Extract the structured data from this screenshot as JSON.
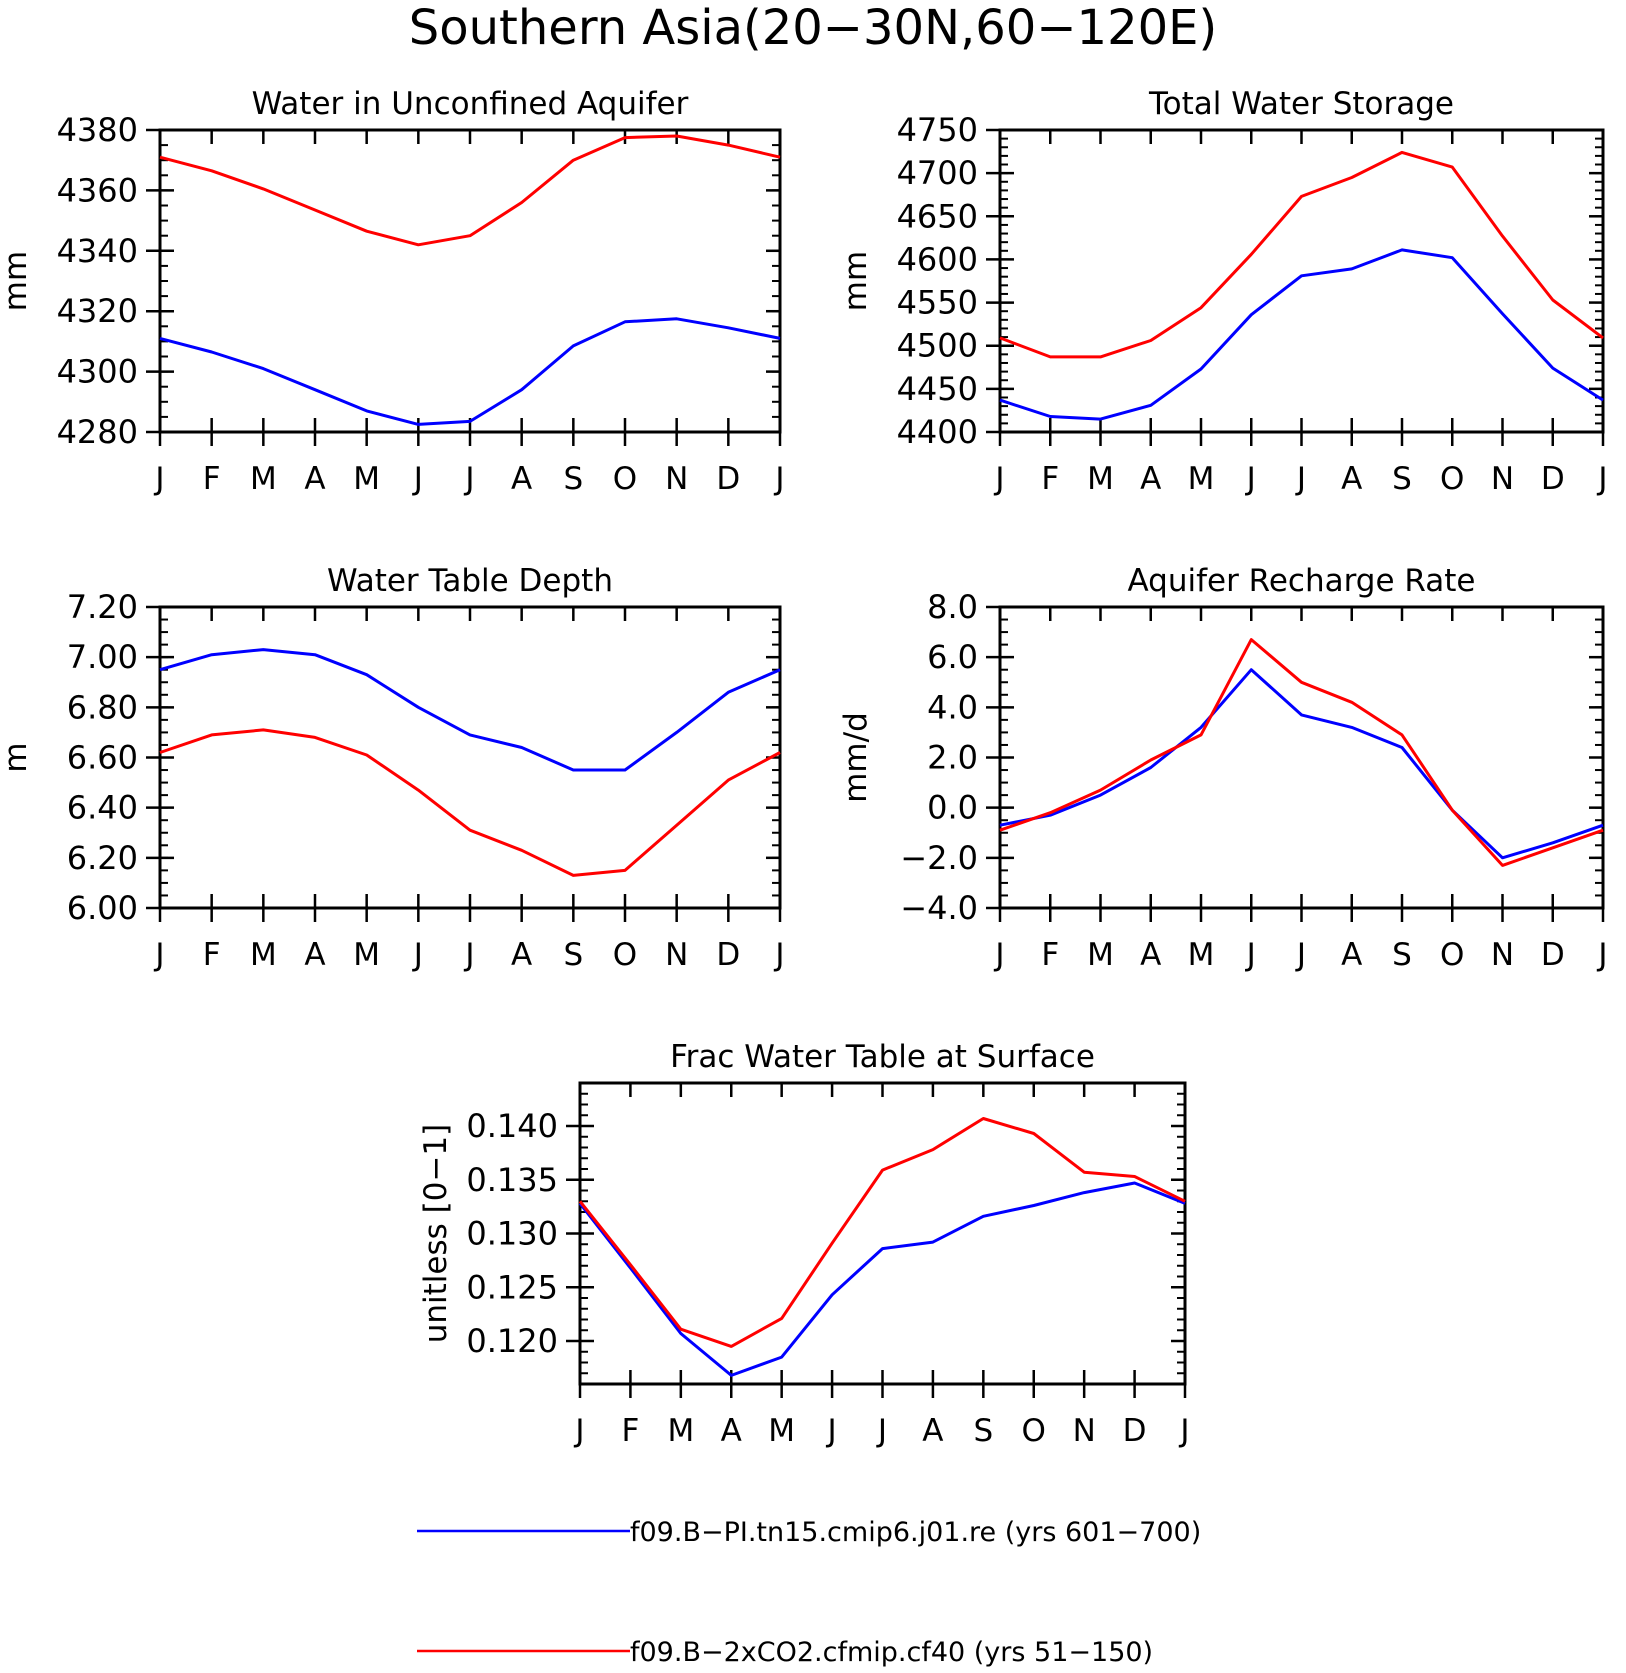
{
  "title": "Southern Asia(20−30N,60−120E)",
  "months": [
    "J",
    "F",
    "M",
    "A",
    "M",
    "J",
    "J",
    "A",
    "S",
    "O",
    "N",
    "D",
    "J"
  ],
  "colors": {
    "run1": "#0000ff",
    "run2": "#ff0000"
  },
  "legend": [
    {
      "label": "f09.B−PI.tn15.cmip6.j01.re (yrs 601−700)",
      "color": "#0000ff"
    },
    {
      "label": "f09.B−2xCO2.cfmip.cf40 (yrs 51−150)",
      "color": "#ff0000"
    }
  ],
  "chart_data": [
    {
      "type": "line",
      "title": "Water in Unconfined Aquifer",
      "ylabel": "mm",
      "ylim": [
        4280,
        4380
      ],
      "yticks": [
        4280,
        4300,
        4320,
        4340,
        4360,
        4380
      ],
      "ytick_labels": [
        "4280",
        "4300",
        "4320",
        "4340",
        "4360",
        "4380"
      ],
      "yminor": 5,
      "series": [
        {
          "values": [
            4311,
            4306.5,
            4301,
            4294,
            4287,
            4282.5,
            4283.5,
            4294,
            4308.5,
            4316.5,
            4317.5,
            4314.5,
            4311
          ],
          "color": "#0000ff"
        },
        {
          "values": [
            4371,
            4366.5,
            4360.5,
            4353.5,
            4346.5,
            4342,
            4345,
            4356,
            4370,
            4377.5,
            4378,
            4375,
            4371
          ],
          "color": "#ff0000"
        }
      ]
    },
    {
      "type": "line",
      "title": "Total Water Storage",
      "ylabel": "mm",
      "ylim": [
        4400,
        4750
      ],
      "yticks": [
        4400,
        4450,
        4500,
        4550,
        4600,
        4650,
        4700,
        4750
      ],
      "ytick_labels": [
        "4400",
        "4450",
        "4500",
        "4550",
        "4600",
        "4650",
        "4700",
        "4750"
      ],
      "yminor": 10,
      "series": [
        {
          "values": [
            4437,
            4418,
            4415,
            4431,
            4473,
            4536,
            4581,
            4589,
            4611,
            4602,
            4537,
            4474,
            4437
          ],
          "color": "#0000ff"
        },
        {
          "values": [
            4509,
            4487,
            4487,
            4506,
            4544,
            4606,
            4673,
            4695,
            4724,
            4707,
            4627,
            4553,
            4509
          ],
          "color": "#ff0000"
        }
      ]
    },
    {
      "type": "line",
      "title": "Water Table Depth",
      "ylabel": "m",
      "ylim": [
        6.0,
        7.2
      ],
      "yticks": [
        6.0,
        6.2,
        6.4,
        6.6,
        6.8,
        7.0,
        7.2
      ],
      "ytick_labels": [
        "6.00",
        "6.20",
        "6.40",
        "6.60",
        "6.80",
        "7.00",
        "7.20"
      ],
      "yminor": 0.05,
      "series": [
        {
          "values": [
            6.95,
            7.01,
            7.03,
            7.01,
            6.93,
            6.8,
            6.69,
            6.64,
            6.55,
            6.55,
            6.7,
            6.86,
            6.95
          ],
          "color": "#0000ff"
        },
        {
          "values": [
            6.62,
            6.69,
            6.71,
            6.68,
            6.61,
            6.47,
            6.31,
            6.23,
            6.13,
            6.15,
            6.33,
            6.51,
            6.62
          ],
          "color": "#ff0000"
        }
      ]
    },
    {
      "type": "line",
      "title": "Aquifer Recharge Rate",
      "ylabel": "mm/d",
      "ylim": [
        -4.0,
        8.0
      ],
      "yticks": [
        -4,
        -2,
        0,
        2,
        4,
        6,
        8
      ],
      "ytick_labels": [
        "−4.0",
        "−2.0",
        "0.0",
        "2.0",
        "4.0",
        "6.0",
        "8.0"
      ],
      "yminor": 0.5,
      "series": [
        {
          "values": [
            -0.7,
            -0.3,
            0.5,
            1.6,
            3.2,
            5.5,
            3.7,
            3.2,
            2.4,
            -0.1,
            -2.0,
            -1.4,
            -0.7
          ],
          "color": "#0000ff"
        },
        {
          "values": [
            -0.9,
            -0.2,
            0.7,
            1.9,
            2.9,
            6.7,
            5.0,
            4.2,
            2.9,
            -0.1,
            -2.3,
            -1.6,
            -0.9
          ],
          "color": "#ff0000"
        }
      ]
    },
    {
      "type": "line",
      "title": "Frac Water Table at Surface",
      "ylabel": "unitless [0−1]",
      "ylim": [
        0.116,
        0.144
      ],
      "yticks": [
        0.12,
        0.125,
        0.13,
        0.135,
        0.14
      ],
      "ytick_labels": [
        "0.120",
        "0.125",
        "0.130",
        "0.135",
        "0.140"
      ],
      "yminor": 0.001,
      "series": [
        {
          "values": [
            0.1328,
            0.1268,
            0.1207,
            0.1168,
            0.1185,
            0.1243,
            0.1286,
            0.1292,
            0.1316,
            0.1326,
            0.1338,
            0.1347,
            0.1328
          ],
          "color": "#0000ff"
        },
        {
          "values": [
            0.133,
            0.1271,
            0.1211,
            0.1195,
            0.1221,
            0.1291,
            0.1359,
            0.1378,
            0.1407,
            0.1393,
            0.1357,
            0.1353,
            0.133
          ],
          "color": "#ff0000"
        }
      ]
    }
  ]
}
